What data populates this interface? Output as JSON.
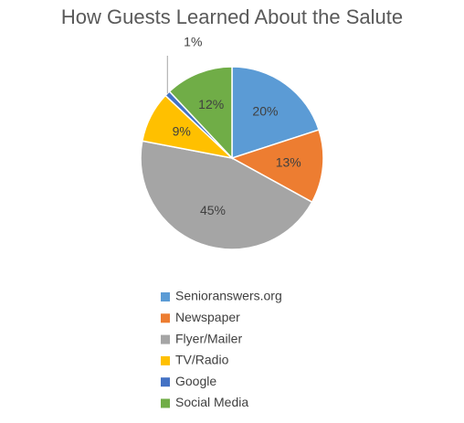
{
  "chart_data": {
    "type": "pie",
    "title": "How Guests Learned About the Salute",
    "categories": [
      "Senioranswers.org",
      "Newspaper",
      "Flyer/Mailer",
      "TV/Radio",
      "Google",
      "Social Media"
    ],
    "values": [
      20,
      13,
      45,
      9,
      1,
      12
    ],
    "value_labels": [
      "20%",
      "13%",
      "45%",
      "9%",
      "1%",
      "12%"
    ],
    "colors": [
      "#5b9bd5",
      "#ed7d31",
      "#a5a5a5",
      "#ffc000",
      "#4472c4",
      "#70ad47"
    ],
    "legend": "bottom"
  }
}
